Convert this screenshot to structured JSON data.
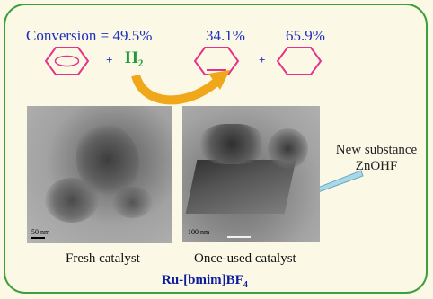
{
  "header": {
    "conversion_label": "Conversion = 49.5%",
    "product1_pct": "34.1%",
    "product2_pct": "65.9%",
    "plus1": "+",
    "plus2": "+",
    "reagent": "H₂"
  },
  "micrographs": {
    "left_scale": "50 nm",
    "right_scale": "100 nm",
    "left_caption": "Fresh catalyst",
    "right_caption": "Once-used catalyst"
  },
  "callout": {
    "line1": "New substance",
    "line2": "ZnOHF"
  },
  "footer": {
    "catalyst_prefix": "Ru-[bmim]BF",
    "catalyst_subscript": "4"
  },
  "colors": {
    "frame": "#3f9f3f",
    "ring": "#e6338a",
    "reagent": "#1e9a3a",
    "arrow": "#f0a81a",
    "title_text": "#1f2fbf"
  }
}
